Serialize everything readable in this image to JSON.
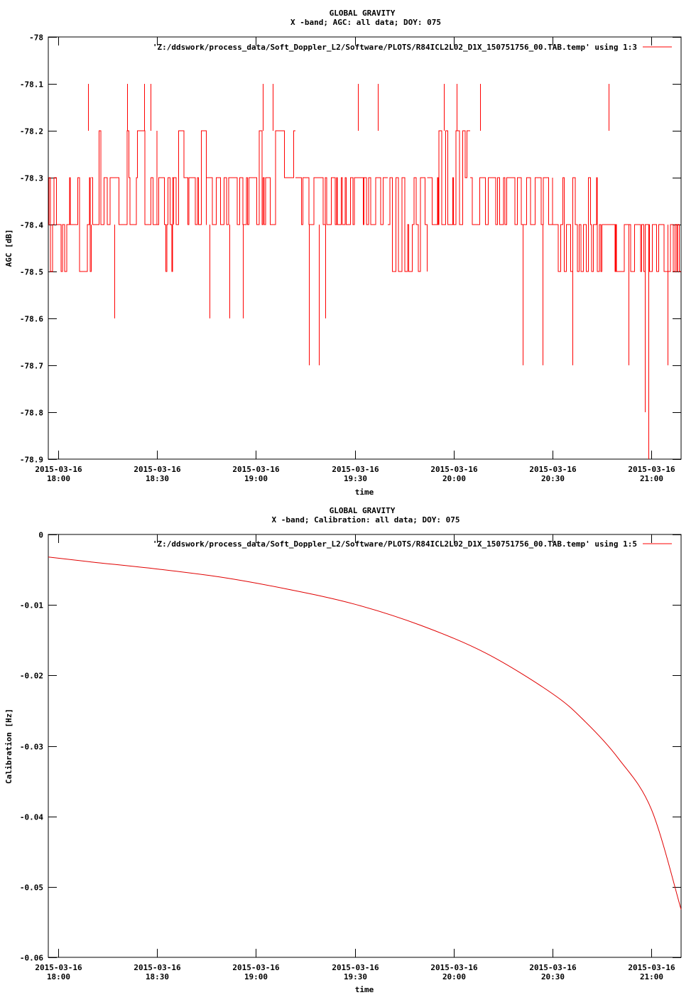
{
  "colors": {
    "series": "#ff0000",
    "axis": "#000000",
    "background": "#ffffff"
  },
  "chart_data": [
    {
      "type": "line",
      "title": "GLOBAL GRAVITY",
      "subtitle": "X -band; AGC: all data; DOY: 075",
      "xlabel": "time",
      "ylabel": "AGC [dB]",
      "xlim": [
        "2015-03-16 17:57",
        "2015-03-16 21:09"
      ],
      "ylim": [
        -78.9,
        -78.0
      ],
      "grid": false,
      "legend_position": "top-right",
      "yticks": [
        -78,
        -78.1,
        -78.2,
        -78.3,
        -78.4,
        -78.5,
        -78.6,
        -78.7,
        -78.8,
        -78.9
      ],
      "ytick_labels": [
        "-78",
        "-78.1",
        "-78.2",
        "-78.3",
        "-78.4",
        "-78.5",
        "-78.6",
        "-78.7",
        "-78.8",
        "-78.9"
      ],
      "xticks": [
        "2015-03-16 18:00",
        "2015-03-16 18:30",
        "2015-03-16 19:00",
        "2015-03-16 19:30",
        "2015-03-16 20:00",
        "2015-03-16 20:30",
        "2015-03-16 21:00"
      ],
      "xtick_date": "2015-03-16",
      "xtick_times": [
        "18:00",
        "18:30",
        "19:00",
        "19:30",
        "20:00",
        "20:30",
        "21:00"
      ],
      "series": [
        {
          "name": "'Z:/ddswork/process_data/Soft_Doppler_L2/Software/PLOTS/R84ICL2L02_D1X_150751756_00.TAB.temp' using 1:3",
          "note_on_values": "AGC alternates rapidly between quantized levels; segments give time range and the low/high levels of the oscillation, spikes give single excursions",
          "segments": [
            {
              "from": "2015-03-16 17:57",
              "to": "2015-03-16 18:10",
              "low": -78.5,
              "high": -78.3
            },
            {
              "from": "2015-03-16 18:10",
              "to": "2015-03-16 18:30",
              "low": -78.4,
              "high": -78.2
            },
            {
              "from": "2015-03-16 18:30",
              "to": "2015-03-16 18:35",
              "low": -78.5,
              "high": -78.3
            },
            {
              "from": "2015-03-16 18:35",
              "to": "2015-03-16 18:45",
              "low": -78.4,
              "high": -78.2
            },
            {
              "from": "2015-03-16 18:45",
              "to": "2015-03-16 19:00",
              "low": -78.4,
              "high": -78.3
            },
            {
              "from": "2015-03-16 19:00",
              "to": "2015-03-16 19:12",
              "low": -78.4,
              "high": -78.2
            },
            {
              "from": "2015-03-16 19:12",
              "to": "2015-03-16 19:40",
              "low": -78.4,
              "high": -78.3
            },
            {
              "from": "2015-03-16 19:40",
              "to": "2015-03-16 19:52",
              "low": -78.5,
              "high": -78.3
            },
            {
              "from": "2015-03-16 19:52",
              "to": "2015-03-16 20:05",
              "low": -78.4,
              "high": -78.2
            },
            {
              "from": "2015-03-16 20:05",
              "to": "2015-03-16 20:30",
              "low": -78.4,
              "high": -78.3
            },
            {
              "from": "2015-03-16 20:30",
              "to": "2015-03-16 20:45",
              "low": -78.5,
              "high": -78.3
            },
            {
              "from": "2015-03-16 20:45",
              "to": "2015-03-16 21:09",
              "low": -78.5,
              "high": -78.4
            }
          ],
          "spikes": [
            {
              "x": "2015-03-16 18:09",
              "y": -78.1
            },
            {
              "x": "2015-03-16 18:17",
              "y": -78.6
            },
            {
              "x": "2015-03-16 18:21",
              "y": -78.1
            },
            {
              "x": "2015-03-16 18:26",
              "y": -78.1
            },
            {
              "x": "2015-03-16 18:28",
              "y": -78.1
            },
            {
              "x": "2015-03-16 18:46",
              "y": -78.6
            },
            {
              "x": "2015-03-16 18:52",
              "y": -78.6
            },
            {
              "x": "2015-03-16 18:56",
              "y": -78.6
            },
            {
              "x": "2015-03-16 19:02",
              "y": -78.1
            },
            {
              "x": "2015-03-16 19:05",
              "y": -78.1
            },
            {
              "x": "2015-03-16 19:16",
              "y": -78.7
            },
            {
              "x": "2015-03-16 19:19",
              "y": -78.7
            },
            {
              "x": "2015-03-16 19:21",
              "y": -78.6
            },
            {
              "x": "2015-03-16 19:31",
              "y": -78.1
            },
            {
              "x": "2015-03-16 19:37",
              "y": -78.1
            },
            {
              "x": "2015-03-16 19:57",
              "y": -78.1
            },
            {
              "x": "2015-03-16 20:01",
              "y": -78.1
            },
            {
              "x": "2015-03-16 20:08",
              "y": -78.1
            },
            {
              "x": "2015-03-16 20:21",
              "y": -78.7
            },
            {
              "x": "2015-03-16 20:27",
              "y": -78.7
            },
            {
              "x": "2015-03-16 20:36",
              "y": -78.7
            },
            {
              "x": "2015-03-16 20:47",
              "y": -78.1
            },
            {
              "x": "2015-03-16 20:53",
              "y": -78.7
            },
            {
              "x": "2015-03-16 20:58",
              "y": -78.8
            },
            {
              "x": "2015-03-16 20:59",
              "y": -78.9
            },
            {
              "x": "2015-03-16 21:05",
              "y": -78.7
            }
          ]
        }
      ]
    },
    {
      "type": "line",
      "title": "GLOBAL GRAVITY",
      "subtitle": "X -band; Calibration: all data; DOY: 075",
      "xlabel": "time",
      "ylabel": "Calibration [Hz]",
      "xlim": [
        "2015-03-16 17:57",
        "2015-03-16 21:09"
      ],
      "ylim": [
        -0.06,
        0
      ],
      "grid": false,
      "legend_position": "top-right",
      "yticks": [
        0,
        -0.01,
        -0.02,
        -0.03,
        -0.04,
        -0.05,
        -0.06
      ],
      "ytick_labels": [
        "0",
        "-0.01",
        "-0.02",
        "-0.03",
        "-0.04",
        "-0.05",
        "-0.06"
      ],
      "xticks": [
        "2015-03-16 18:00",
        "2015-03-16 18:30",
        "2015-03-16 19:00",
        "2015-03-16 19:30",
        "2015-03-16 20:00",
        "2015-03-16 20:30",
        "2015-03-16 21:00"
      ],
      "xtick_date": "2015-03-16",
      "xtick_times": [
        "18:00",
        "18:30",
        "19:00",
        "19:30",
        "20:00",
        "20:30",
        "21:00"
      ],
      "series": [
        {
          "name": "'Z:/ddswork/process_data/Soft_Doppler_L2/Software/PLOTS/R84ICL2L02_D1X_150751756_00.TAB.temp' using 1:5",
          "x": [
            "2015-03-16 17:57",
            "2015-03-16 18:10",
            "2015-03-16 18:30",
            "2015-03-16 18:50",
            "2015-03-16 19:10",
            "2015-03-16 19:30",
            "2015-03-16 19:50",
            "2015-03-16 20:10",
            "2015-03-16 20:30",
            "2015-03-16 20:40",
            "2015-03-16 20:50",
            "2015-03-16 21:00",
            "2015-03-16 21:09"
          ],
          "y": [
            -0.0032,
            -0.0039,
            -0.0049,
            -0.0061,
            -0.0078,
            -0.0099,
            -0.0129,
            -0.0169,
            -0.0226,
            -0.0266,
            -0.0318,
            -0.039,
            -0.0532
          ]
        }
      ]
    }
  ]
}
